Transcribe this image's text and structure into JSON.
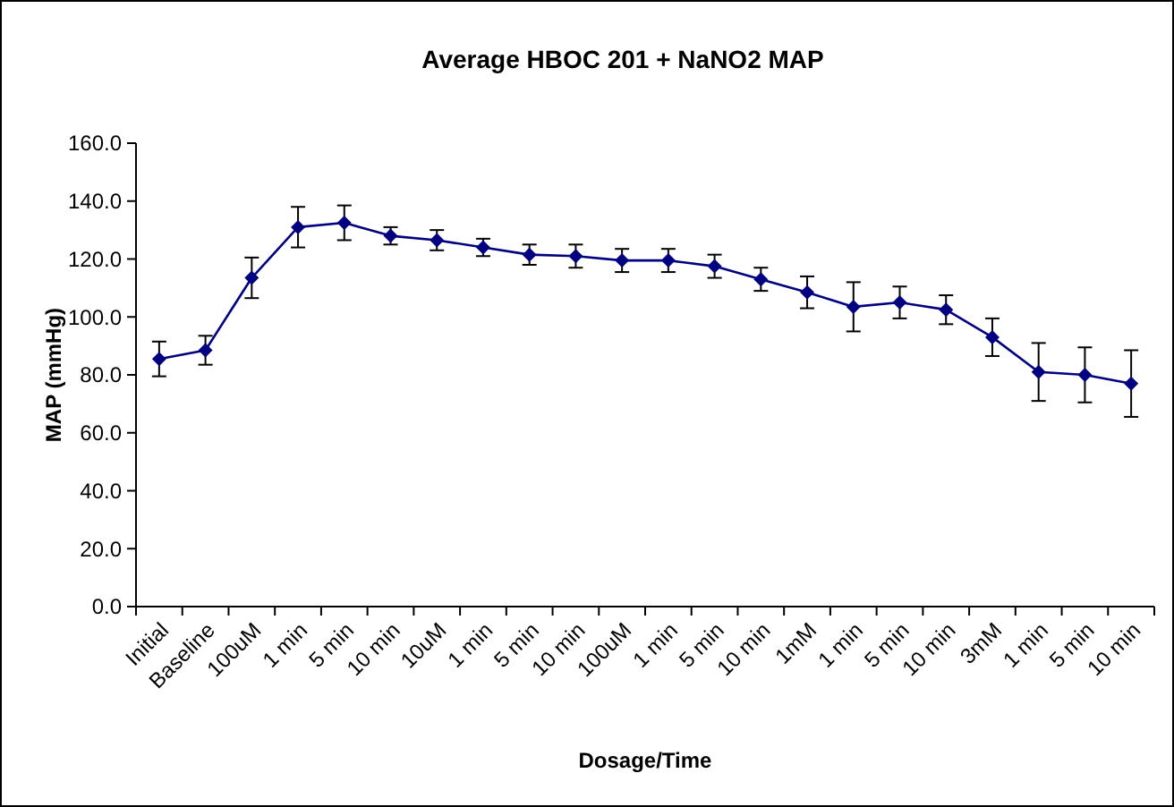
{
  "chart_data": {
    "type": "line",
    "title": "Average HBOC 201 + NaNO2 MAP",
    "xlabel": "Dosage/Time",
    "ylabel": "MAP (mmHg)",
    "categories": [
      "Initial",
      "Baseline",
      "100uM",
      "1 min",
      "5 min",
      "10 min",
      "10uM",
      "1 min",
      "5 min",
      "10 min",
      "100uM",
      "1 min",
      "5 min",
      "10 min",
      "1mM",
      "1 min",
      "5 min",
      "10 min",
      "3mM",
      "1 min",
      "5 min",
      "10 min"
    ],
    "series": [
      {
        "color": "#000080",
        "values": [
          85.5,
          88.5,
          113.5,
          131,
          132.5,
          128,
          126.5,
          124,
          121.5,
          121,
          119.5,
          119.5,
          117.5,
          113,
          108.5,
          103.5,
          105,
          102.5,
          93,
          81,
          80,
          77
        ],
        "errors": [
          6,
          5,
          7,
          7,
          6,
          3,
          3.5,
          3,
          3.5,
          4,
          4,
          4,
          4,
          4,
          5.5,
          8.5,
          5.5,
          5,
          6.5,
          10,
          9.5,
          11.5
        ]
      }
    ],
    "ylim": [
      0,
      160
    ],
    "yticks": [
      {
        "value": 0,
        "label": "0.0"
      },
      {
        "value": 20,
        "label": "20.0"
      },
      {
        "value": 40,
        "label": "40.0"
      },
      {
        "value": 60,
        "label": "60.0"
      },
      {
        "value": 80,
        "label": "80.0"
      },
      {
        "value": 100,
        "label": "100.0"
      },
      {
        "value": 120,
        "label": "120.0"
      },
      {
        "value": 140,
        "label": "140.0"
      },
      {
        "value": 160,
        "label": "160.0"
      }
    ],
    "grid": false,
    "marker": "diamond",
    "line_style": "solid"
  }
}
